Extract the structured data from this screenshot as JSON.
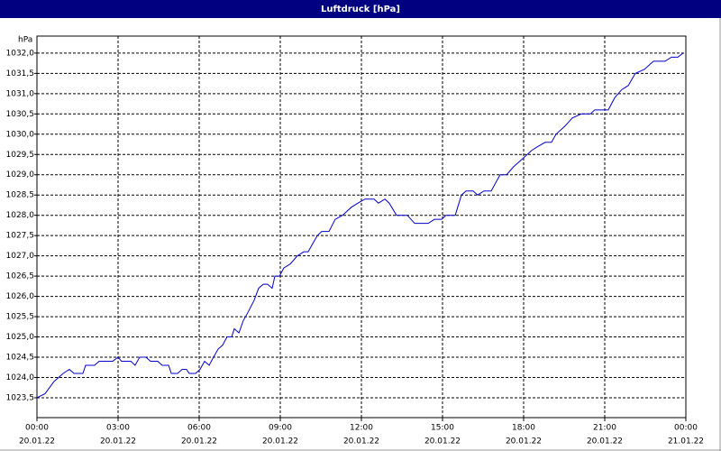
{
  "chart_data": {
    "type": "line",
    "title": "Luftdruck [hPa]",
    "y_label": "hPa",
    "x": [
      0,
      0.3,
      0.63,
      0.97,
      1.2,
      1.37,
      1.7,
      1.8,
      2.13,
      2.3,
      2.8,
      3.0,
      3.13,
      3.47,
      3.63,
      3.8,
      4.03,
      4.2,
      4.47,
      4.63,
      4.87,
      4.97,
      5.2,
      5.37,
      5.53,
      5.63,
      5.87,
      6.03,
      6.2,
      6.37,
      6.53,
      6.7,
      6.87,
      7.03,
      7.2,
      7.3,
      7.47,
      7.63,
      7.8,
      8.03,
      8.2,
      8.37,
      8.53,
      8.7,
      8.8,
      8.97,
      9.13,
      9.37,
      9.63,
      9.87,
      10.03,
      10.2,
      10.37,
      10.53,
      10.8,
      11.03,
      11.3,
      11.63,
      11.87,
      12.13,
      12.47,
      12.63,
      12.87,
      13.03,
      13.3,
      13.7,
      13.97,
      14.47,
      14.7,
      14.97,
      15.13,
      15.47,
      15.7,
      15.87,
      16.13,
      16.3,
      16.53,
      16.8,
      17.13,
      17.37,
      17.63,
      17.97,
      18.3,
      18.53,
      18.8,
      19.03,
      19.2,
      19.53,
      19.8,
      20.13,
      20.47,
      20.63,
      21.13,
      21.37,
      21.63,
      21.87,
      22.13,
      22.47,
      22.8,
      23.23,
      23.47,
      23.7,
      23.9
    ],
    "series": [
      {
        "name": "Luftdruck",
        "color": "#0000cc",
        "values": [
          1023.5,
          1023.6,
          1023.9,
          1024.1,
          1024.2,
          1024.1,
          1024.1,
          1024.3,
          1024.3,
          1024.4,
          1024.4,
          1024.5,
          1024.4,
          1024.4,
          1024.3,
          1024.5,
          1024.5,
          1024.4,
          1024.4,
          1024.3,
          1024.3,
          1024.1,
          1024.1,
          1024.2,
          1024.2,
          1024.1,
          1024.1,
          1024.2,
          1024.4,
          1024.3,
          1024.5,
          1024.7,
          1024.8,
          1025.0,
          1025.0,
          1025.2,
          1025.1,
          1025.4,
          1025.6,
          1025.9,
          1026.2,
          1026.3,
          1026.3,
          1026.2,
          1026.5,
          1026.5,
          1026.7,
          1026.8,
          1027.0,
          1027.1,
          1027.1,
          1027.3,
          1027.5,
          1027.6,
          1027.6,
          1027.9,
          1028.0,
          1028.2,
          1028.3,
          1028.4,
          1028.4,
          1028.3,
          1028.4,
          1028.3,
          1028.0,
          1028.0,
          1027.8,
          1027.8,
          1027.9,
          1027.9,
          1028.0,
          1028.0,
          1028.5,
          1028.6,
          1028.6,
          1028.5,
          1028.6,
          1028.6,
          1029.0,
          1029.0,
          1029.2,
          1029.4,
          1029.6,
          1029.7,
          1029.8,
          1029.8,
          1030.0,
          1030.2,
          1030.4,
          1030.5,
          1030.5,
          1030.6,
          1030.6,
          1030.9,
          1031.1,
          1031.2,
          1031.5,
          1031.6,
          1031.8,
          1031.8,
          1031.9,
          1031.9,
          1032.0
        ]
      }
    ],
    "xlim": [
      0,
      24
    ],
    "xticks": [
      {
        "value": 0,
        "label": "00:00",
        "date": "20.01.22"
      },
      {
        "value": 3,
        "label": "03:00",
        "date": "20.01.22"
      },
      {
        "value": 6,
        "label": "06:00",
        "date": "20.01.22"
      },
      {
        "value": 9,
        "label": "09:00",
        "date": "20.01.22"
      },
      {
        "value": 12,
        "label": "12:00",
        "date": "20.01.22"
      },
      {
        "value": 15,
        "label": "15:00",
        "date": "20.01.22"
      },
      {
        "value": 18,
        "label": "18:00",
        "date": "20.01.22"
      },
      {
        "value": 21,
        "label": "21:00",
        "date": "20.01.22"
      },
      {
        "value": 24,
        "label": "00:00",
        "date": "21.01.22"
      }
    ],
    "ylim": [
      1023.01,
      1032.42
    ],
    "yticks": [
      {
        "value": 1023.5,
        "label": "1023,5"
      },
      {
        "value": 1024,
        "label": "1024,0"
      },
      {
        "value": 1024.5,
        "label": "1024,5"
      },
      {
        "value": 1025,
        "label": "1025,0"
      },
      {
        "value": 1025.5,
        "label": "1025,5"
      },
      {
        "value": 1026,
        "label": "1026,0"
      },
      {
        "value": 1026.5,
        "label": "1026,5"
      },
      {
        "value": 1027,
        "label": "1027,0"
      },
      {
        "value": 1027.5,
        "label": "1027,5"
      },
      {
        "value": 1028,
        "label": "1028,0"
      },
      {
        "value": 1028.5,
        "label": "1028,5"
      },
      {
        "value": 1029,
        "label": "1029,0"
      },
      {
        "value": 1029.5,
        "label": "1029,5"
      },
      {
        "value": 1030,
        "label": "1030,0"
      },
      {
        "value": 1030.5,
        "label": "1030,5"
      },
      {
        "value": 1031,
        "label": "1031,0"
      },
      {
        "value": 1031.5,
        "label": "1031,5"
      },
      {
        "value": 1032,
        "label": "1032,0"
      }
    ],
    "grid": true
  }
}
